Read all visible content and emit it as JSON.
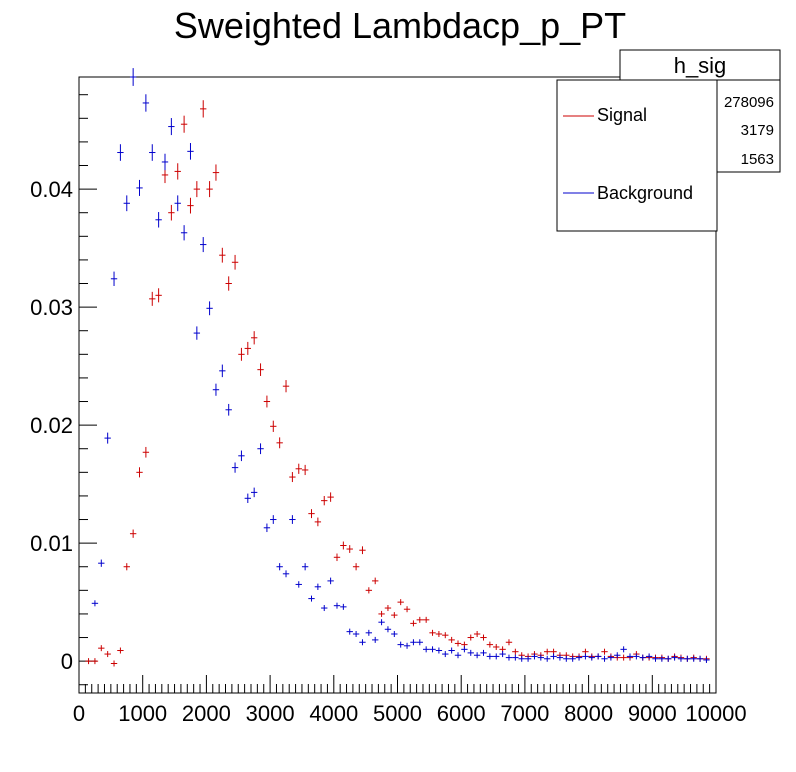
{
  "chart_data": {
    "type": "scatter",
    "title": "Sweighted Lambdacp_p_PT",
    "xlabel": "",
    "ylabel": "",
    "xlim": [
      0,
      10000
    ],
    "ylim": [
      -0.0027,
      0.0495
    ],
    "x_ticks": [
      0,
      1000,
      2000,
      3000,
      4000,
      5000,
      6000,
      7000,
      8000,
      9000,
      10000
    ],
    "x_tick_labels": [
      "0",
      "1000",
      "2000",
      "3000",
      "4000",
      "5000",
      "6000",
      "7000",
      "8000",
      "9000",
      "10000"
    ],
    "y_ticks": [
      0,
      0.01,
      0.02,
      0.03,
      0.04
    ],
    "y_tick_labels": [
      "0",
      "0.01",
      "0.02",
      "0.03",
      "0.04"
    ],
    "bin_width": 100,
    "grid": false,
    "legend_position": "top-right",
    "stats_box": {
      "title": "h_sig",
      "values": [
        "278096",
        "3179",
        "1563"
      ]
    },
    "series": [
      {
        "name": "Signal",
        "color": "#cc0000",
        "x": [
          200,
          300,
          400,
          500,
          600,
          700,
          800,
          900,
          1000,
          1100,
          1200,
          1300,
          1400,
          1500,
          1600,
          1700,
          1800,
          1900,
          2000,
          2100,
          2200,
          2300,
          2400,
          2500,
          2600,
          2700,
          2800,
          2900,
          3000,
          3100,
          3200,
          3300,
          3400,
          3500,
          3600,
          3700,
          3800,
          3900,
          4000,
          4100,
          4200,
          4300,
          4400,
          4500,
          4600,
          4700,
          4800,
          4900,
          5000,
          5100,
          5200,
          5300,
          5400,
          5500,
          5600,
          5700,
          5800,
          5900,
          6000,
          6100,
          6200,
          6300,
          6400,
          6500,
          6600,
          6700,
          6800,
          6900,
          7000,
          7100,
          7200,
          7300,
          7400,
          7500,
          7600,
          7700,
          7800,
          7900,
          8000,
          8100,
          8200,
          8300,
          8400,
          8500,
          8600,
          8700,
          8800,
          8900,
          9000,
          9100,
          9200,
          9300,
          9400,
          9500,
          9600,
          9700,
          9800,
          9900
        ],
        "y": [
          0.0,
          0.0,
          0.0011,
          0.0006,
          -0.0002,
          0.0009,
          0.008,
          0.0108,
          0.016,
          0.0177,
          0.0307,
          0.031,
          0.0412,
          0.038,
          0.0415,
          0.0455,
          0.0386,
          0.04,
          0.0468,
          0.04,
          0.0414,
          0.0344,
          0.032,
          0.0338,
          0.026,
          0.0265,
          0.0274,
          0.0247,
          0.022,
          0.0199,
          0.0185,
          0.0233,
          0.0156,
          0.0163,
          0.0162,
          0.0125,
          0.0118,
          0.0136,
          0.0139,
          0.0088,
          0.0098,
          0.0095,
          0.008,
          0.0094,
          0.006,
          0.0068,
          0.004,
          0.0045,
          0.0039,
          0.005,
          0.0044,
          0.0032,
          0.0035,
          0.0035,
          0.0024,
          0.0023,
          0.0022,
          0.0018,
          0.0015,
          0.0014,
          0.002,
          0.0023,
          0.002,
          0.0014,
          0.0012,
          0.001,
          0.0016,
          0.0008,
          0.0005,
          0.0004,
          0.0006,
          0.0005,
          0.0008,
          0.0008,
          0.0005,
          0.0005,
          0.0004,
          0.0004,
          0.0008,
          0.0004,
          0.0004,
          0.0008,
          0.0004,
          0.0003,
          0.0003,
          0.0003,
          0.0006,
          0.0003,
          0.0003,
          0.0003,
          0.0003,
          0.0002,
          0.0004,
          0.0003,
          0.0002,
          0.0003,
          0.0002,
          0.0002
        ]
      },
      {
        "name": "Background",
        "color": "#0000cc",
        "x": [
          300,
          400,
          500,
          600,
          700,
          800,
          900,
          1000,
          1100,
          1200,
          1300,
          1400,
          1500,
          1600,
          1700,
          1800,
          1900,
          2000,
          2100,
          2200,
          2300,
          2400,
          2500,
          2600,
          2700,
          2800,
          2900,
          3000,
          3100,
          3200,
          3300,
          3400,
          3500,
          3600,
          3700,
          3800,
          3900,
          4000,
          4100,
          4200,
          4300,
          4400,
          4500,
          4600,
          4700,
          4800,
          4900,
          5000,
          5100,
          5200,
          5300,
          5400,
          5500,
          5600,
          5700,
          5800,
          5900,
          6000,
          6100,
          6200,
          6300,
          6400,
          6500,
          6600,
          6700,
          6800,
          6900,
          7000,
          7100,
          7200,
          7300,
          7400,
          7500,
          7600,
          7700,
          7800,
          7900,
          8000,
          8100,
          8200,
          8300,
          8400,
          8500,
          8600,
          8700,
          8800,
          8900,
          9000,
          9100,
          9200,
          9300,
          9400,
          9500,
          9600,
          9700,
          9800,
          9900
        ],
        "y": [
          0.0049,
          0.0083,
          0.0189,
          0.0324,
          0.0431,
          0.0388,
          0.0495,
          0.0401,
          0.0473,
          0.0431,
          0.0374,
          0.0423,
          0.0453,
          0.0388,
          0.0363,
          0.0432,
          0.0278,
          0.0353,
          0.0299,
          0.023,
          0.0246,
          0.0213,
          0.0164,
          0.0174,
          0.0138,
          0.0143,
          0.018,
          0.0113,
          0.012,
          0.008,
          0.0074,
          0.012,
          0.0065,
          0.008,
          0.0053,
          0.0063,
          0.0045,
          0.0068,
          0.0047,
          0.0046,
          0.0025,
          0.0023,
          0.0016,
          0.0024,
          0.0018,
          0.0033,
          0.0027,
          0.0023,
          0.0014,
          0.0013,
          0.0016,
          0.0016,
          0.001,
          0.001,
          0.0009,
          0.0006,
          0.0009,
          0.0005,
          0.001,
          0.0007,
          0.0005,
          0.0007,
          0.0004,
          0.0004,
          0.0006,
          0.0003,
          0.0003,
          0.0002,
          0.0002,
          0.0004,
          0.0003,
          0.0002,
          0.0004,
          0.0003,
          0.0002,
          0.0002,
          0.0003,
          0.0004,
          0.0003,
          0.0004,
          0.0002,
          0.0003,
          0.0005,
          0.001,
          0.0004,
          0.0004,
          0.0003,
          0.0004,
          0.0002,
          0.0002,
          0.0002,
          0.0003,
          0.0002,
          0.0002,
          0.0002,
          0.0002,
          0.0001
        ]
      }
    ]
  }
}
